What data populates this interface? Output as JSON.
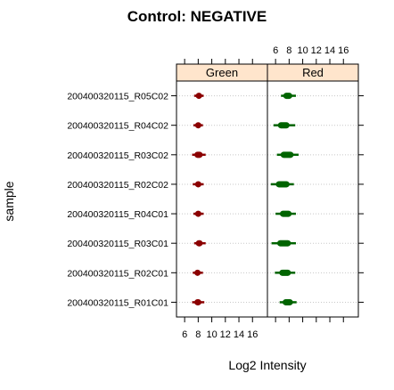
{
  "chart_data": {
    "type": "boxplot",
    "title": "Control: NEGATIVE",
    "xlabel": "Log2 Intensity",
    "ylabel": "sample",
    "xlim": [
      4.8,
      18.2
    ],
    "xticks": [
      6,
      8,
      10,
      12,
      14,
      16
    ],
    "colors": {
      "Green": "#8b0000",
      "Red": "#006400",
      "strip_bg": "#ffe5cc",
      "grid": "#c8c8c8"
    },
    "panels": [
      "Green",
      "Red"
    ],
    "categories": [
      "200400320115_R05C02",
      "200400320115_R04C02",
      "200400320115_R03C02",
      "200400320115_R02C02",
      "200400320115_R04C01",
      "200400320115_R03C01",
      "200400320115_R02C01",
      "200400320115_R01C01"
    ],
    "series": [
      {
        "name": "Green",
        "values": [
          {
            "min": 7.4,
            "q1": 7.7,
            "median": 8.0,
            "q3": 8.5,
            "max": 8.8
          },
          {
            "min": 7.3,
            "q1": 7.6,
            "median": 7.9,
            "q3": 8.4,
            "max": 8.7
          },
          {
            "min": 7.1,
            "q1": 7.5,
            "median": 8.0,
            "q3": 8.6,
            "max": 9.1
          },
          {
            "min": 7.2,
            "q1": 7.6,
            "median": 7.9,
            "q3": 8.4,
            "max": 8.8
          },
          {
            "min": 7.3,
            "q1": 7.6,
            "median": 7.9,
            "q3": 8.4,
            "max": 8.8
          },
          {
            "min": 7.4,
            "q1": 7.7,
            "median": 8.1,
            "q3": 8.6,
            "max": 9.1
          },
          {
            "min": 7.2,
            "q1": 7.5,
            "median": 7.8,
            "q3": 8.3,
            "max": 8.7
          },
          {
            "min": 7.1,
            "q1": 7.5,
            "median": 7.9,
            "q3": 8.4,
            "max": 8.9
          }
        ]
      },
      {
        "name": "Red",
        "values": [
          {
            "min": 6.8,
            "q1": 7.2,
            "median": 7.7,
            "q3": 8.4,
            "max": 9.0
          },
          {
            "min": 5.7,
            "q1": 6.4,
            "median": 7.0,
            "q3": 8.0,
            "max": 8.9
          },
          {
            "min": 6.2,
            "q1": 6.8,
            "median": 7.5,
            "q3": 8.6,
            "max": 9.4
          },
          {
            "min": 5.3,
            "q1": 6.1,
            "median": 6.9,
            "q3": 8.0,
            "max": 8.7
          },
          {
            "min": 6.0,
            "q1": 6.7,
            "median": 7.3,
            "q3": 8.3,
            "max": 9.0
          },
          {
            "min": 5.4,
            "q1": 6.3,
            "median": 7.2,
            "q3": 8.2,
            "max": 9.0
          },
          {
            "min": 5.9,
            "q1": 6.6,
            "median": 7.3,
            "q3": 8.2,
            "max": 8.9
          },
          {
            "min": 6.6,
            "q1": 7.1,
            "median": 7.7,
            "q3": 8.5,
            "max": 9.1
          }
        ]
      }
    ]
  }
}
